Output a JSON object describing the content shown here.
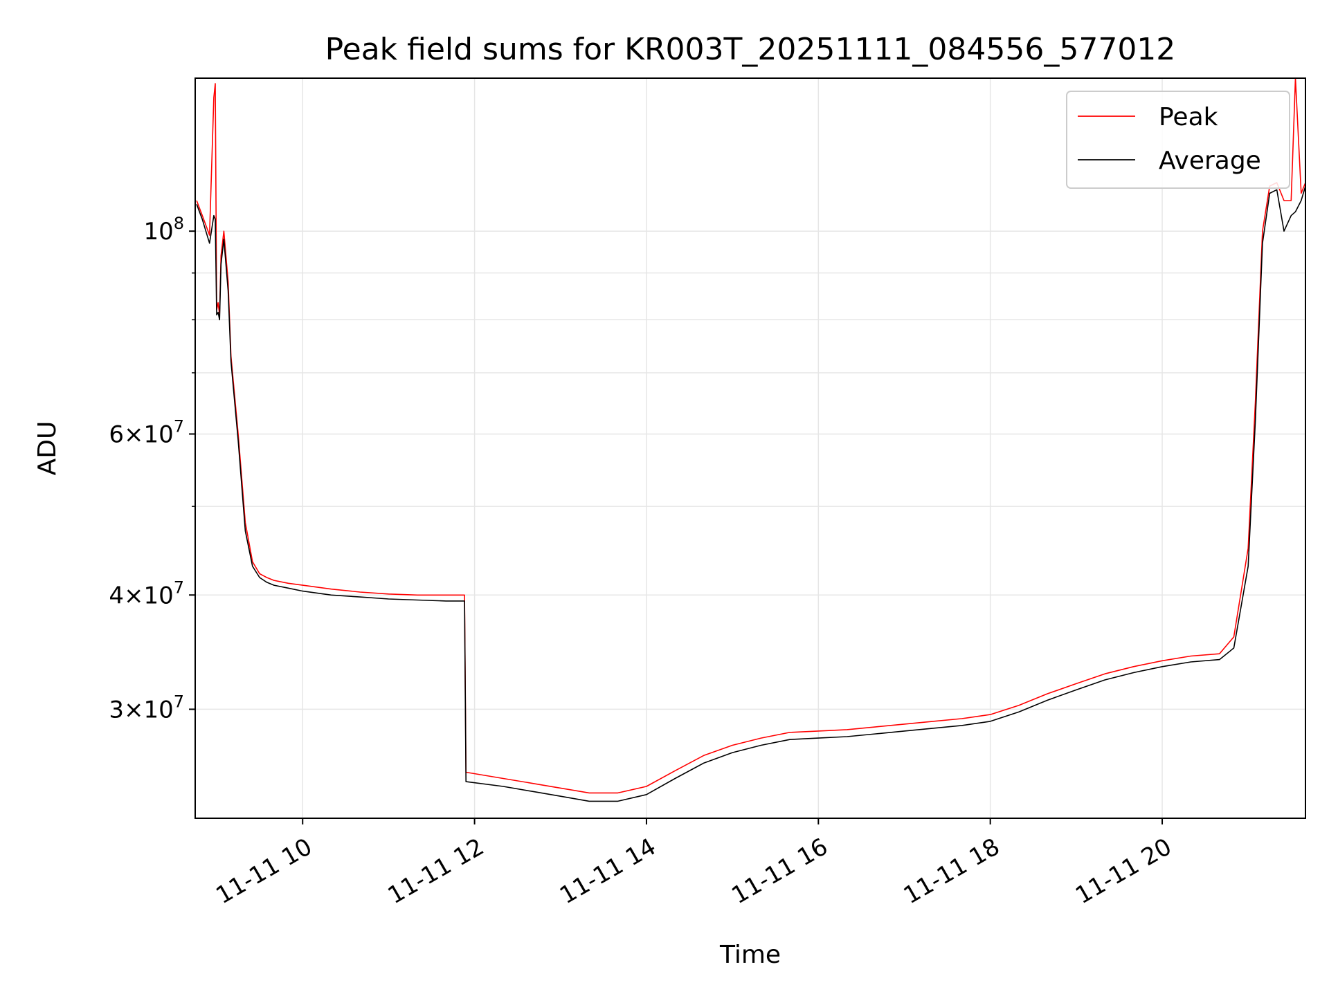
{
  "chart_data": {
    "type": "line",
    "title": "Peak field sums for KR003T_20251111_084556_577012",
    "xlabel": "Time",
    "ylabel": "ADU",
    "x_ticks": [
      "11-11 10",
      "11-11 12",
      "11-11 14",
      "11-11 16",
      "11-11 18",
      "11-11 20"
    ],
    "y_ticks": [
      {
        "value": 100000000,
        "base": "10",
        "exp": "8"
      },
      {
        "value": 60000000,
        "base": "6×10",
        "exp": "7"
      },
      {
        "value": 40000000,
        "base": "4×10",
        "exp": "7"
      },
      {
        "value": 30000000,
        "base": "3×10",
        "exp": "7"
      }
    ],
    "y_scale": "log",
    "ylim": [
      22800000,
      147000000
    ],
    "xlim": [
      "2025-11-11 08:45",
      "2025-11-11 21:40"
    ],
    "grid": true,
    "legend_position": "upper right",
    "colors": {
      "peak": "#ff0000",
      "average": "#000000"
    },
    "series": [
      {
        "name": "Peak",
        "x": [
          "08:46",
          "08:50",
          "08:55",
          "08:58",
          "08:59",
          "09:00",
          "09:01",
          "09:02",
          "09:03",
          "09:05",
          "09:08",
          "09:10",
          "09:15",
          "09:20",
          "09:25",
          "09:30",
          "09:35",
          "09:40",
          "09:50",
          "10:00",
          "10:20",
          "10:40",
          "11:00",
          "11:20",
          "11:40",
          "11:53",
          "11:54",
          "12:20",
          "12:40",
          "13:00",
          "13:20",
          "13:40",
          "14:00",
          "14:20",
          "14:40",
          "15:00",
          "15:20",
          "15:40",
          "16:00",
          "16:20",
          "16:40",
          "17:00",
          "17:20",
          "17:40",
          "18:00",
          "18:20",
          "18:40",
          "19:00",
          "19:20",
          "19:40",
          "20:00",
          "20:20",
          "20:40",
          "20:50",
          "21:00",
          "21:05",
          "21:10",
          "21:15",
          "21:20",
          "21:25",
          "21:30",
          "21:33",
          "21:37",
          "21:40"
        ],
        "y": [
          108000000,
          104000000,
          99000000,
          140000000,
          145000000,
          82000000,
          83500000,
          81000000,
          94000000,
          100000000,
          88000000,
          73000000,
          60000000,
          48000000,
          43500000,
          42200000,
          41800000,
          41500000,
          41200000,
          41000000,
          40600000,
          40300000,
          40100000,
          40000000,
          40000000,
          40000000,
          25600000,
          25200000,
          24900000,
          24600000,
          24300000,
          24300000,
          24700000,
          25700000,
          26700000,
          27400000,
          27900000,
          28300000,
          28400000,
          28500000,
          28700000,
          28900000,
          29100000,
          29300000,
          29600000,
          30300000,
          31200000,
          32000000,
          32800000,
          33400000,
          33900000,
          34300000,
          34500000,
          36000000,
          45000000,
          65000000,
          100000000,
          112000000,
          113000000,
          108000000,
          108000000,
          147000000,
          110000000,
          113000000
        ]
      },
      {
        "name": "Average",
        "x": [
          "08:46",
          "08:50",
          "08:55",
          "08:58",
          "08:59",
          "09:00",
          "09:01",
          "09:02",
          "09:03",
          "09:05",
          "09:08",
          "09:10",
          "09:15",
          "09:20",
          "09:25",
          "09:30",
          "09:35",
          "09:40",
          "09:50",
          "10:00",
          "10:20",
          "10:40",
          "11:00",
          "11:20",
          "11:40",
          "11:53",
          "11:54",
          "12:20",
          "12:40",
          "13:00",
          "13:20",
          "13:40",
          "14:00",
          "14:20",
          "14:40",
          "15:00",
          "15:20",
          "15:40",
          "16:00",
          "16:20",
          "16:40",
          "17:00",
          "17:20",
          "17:40",
          "18:00",
          "18:20",
          "18:40",
          "19:00",
          "19:20",
          "19:40",
          "20:00",
          "20:20",
          "20:40",
          "20:50",
          "21:00",
          "21:05",
          "21:10",
          "21:15",
          "21:20",
          "21:25",
          "21:30",
          "21:33",
          "21:37",
          "21:40"
        ],
        "y": [
          107000000,
          103000000,
          97000000,
          104000000,
          103000000,
          81000000,
          81500000,
          80000000,
          92000000,
          98000000,
          86000000,
          72000000,
          59000000,
          47000000,
          43000000,
          41800000,
          41300000,
          41000000,
          40700000,
          40400000,
          40000000,
          39800000,
          39600000,
          39500000,
          39400000,
          39400000,
          25000000,
          24700000,
          24400000,
          24100000,
          23800000,
          23800000,
          24200000,
          25200000,
          26200000,
          26900000,
          27400000,
          27800000,
          27900000,
          28000000,
          28200000,
          28400000,
          28600000,
          28800000,
          29100000,
          29800000,
          30700000,
          31500000,
          32300000,
          32900000,
          33400000,
          33800000,
          34000000,
          35000000,
          43000000,
          62000000,
          97000000,
          110000000,
          111000000,
          100000000,
          104000000,
          105000000,
          108000000,
          112000000
        ]
      }
    ]
  }
}
